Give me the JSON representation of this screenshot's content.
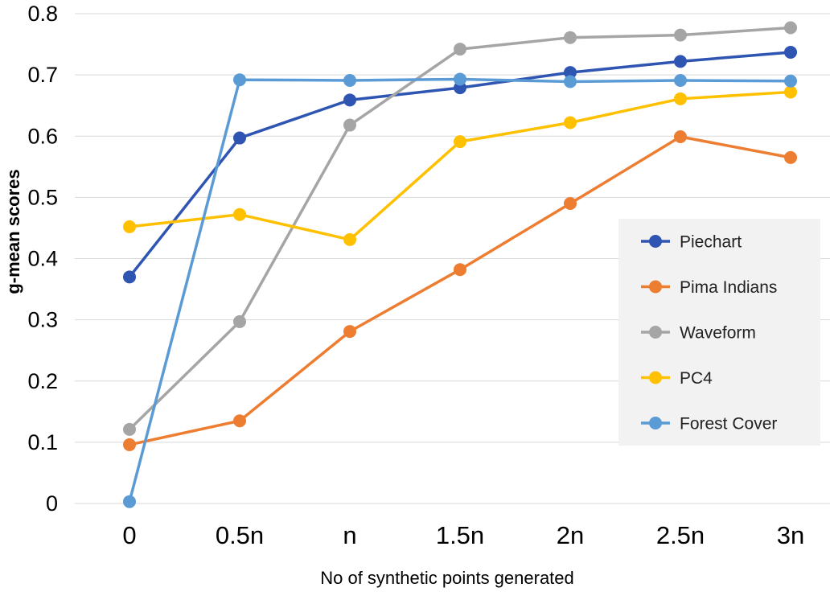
{
  "chart_data": {
    "type": "line",
    "title": "",
    "xlabel": "No of synthetic points generated",
    "ylabel": "g-mean scores",
    "categories": [
      "0",
      "0.5n",
      "n",
      "1.5n",
      "2n",
      "2.5n",
      "3n"
    ],
    "ylim": [
      0,
      0.8
    ],
    "yticks": [
      "0",
      "0.1",
      "0.2",
      "0.3",
      "0.4",
      "0.5",
      "0.6",
      "0.7",
      "0.8"
    ],
    "grid": true,
    "legend_position": "right",
    "series": [
      {
        "name": "Piechart",
        "color": "#2f55b3",
        "values": [
          0.37,
          0.597,
          0.659,
          0.679,
          0.704,
          0.722,
          0.737
        ]
      },
      {
        "name": "Pima Indians",
        "color": "#ed7d31",
        "values": [
          0.096,
          0.135,
          0.281,
          0.382,
          0.49,
          0.599,
          0.565
        ]
      },
      {
        "name": "Waveform",
        "color": "#a5a5a5",
        "values": [
          0.121,
          0.297,
          0.618,
          0.742,
          0.761,
          0.765,
          0.777
        ]
      },
      {
        "name": "PC4",
        "color": "#ffc000",
        "values": [
          0.452,
          0.472,
          0.431,
          0.591,
          0.622,
          0.661,
          0.672
        ]
      },
      {
        "name": "Forest Cover",
        "color": "#5b9bd5",
        "values": [
          0.003,
          0.692,
          0.691,
          0.693,
          0.689,
          0.691,
          0.69
        ]
      }
    ]
  }
}
